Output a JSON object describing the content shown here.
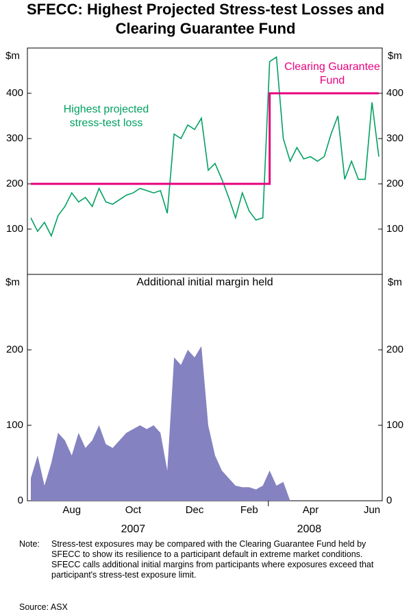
{
  "title": "SFECC: Highest Projected Stress-test Losses and Clearing Guarantee Fund",
  "chart_data": [
    {
      "type": "line",
      "y_label": "$m",
      "ylim": [
        0,
        500
      ],
      "yticks": [
        100,
        200,
        300,
        400
      ],
      "series": [
        {
          "name": "Highest projected stress-test loss",
          "color": "#00a060",
          "values": [
            125,
            95,
            115,
            85,
            130,
            150,
            180,
            160,
            170,
            150,
            190,
            160,
            155,
            165,
            175,
            180,
            190,
            185,
            180,
            185,
            135,
            310,
            300,
            330,
            320,
            345,
            230,
            245,
            210,
            170,
            125,
            180,
            140,
            120,
            125,
            470,
            480,
            300,
            250,
            280,
            255,
            260,
            250,
            260,
            310,
            350,
            210,
            250,
            210,
            210,
            380,
            260
          ]
        },
        {
          "name": "Clearing Guarantee Fund",
          "color": "#e6007e",
          "step": true,
          "values": [
            200,
            200,
            200,
            200,
            200,
            200,
            200,
            200,
            200,
            200,
            200,
            200,
            200,
            200,
            200,
            200,
            200,
            200,
            200,
            200,
            200,
            200,
            200,
            200,
            200,
            200,
            200,
            200,
            200,
            200,
            200,
            200,
            200,
            200,
            200,
            400,
            400,
            400,
            400,
            400,
            400,
            400,
            400,
            400,
            400,
            400,
            400,
            400,
            400,
            400,
            400,
            400
          ]
        }
      ]
    },
    {
      "type": "area",
      "title": "Additional initial margin held",
      "y_label": "$m",
      "ylim": [
        0,
        300
      ],
      "yticks": [
        0,
        100,
        200
      ],
      "categories": [
        null,
        null,
        null,
        null,
        null,
        null,
        "Aug",
        null,
        null,
        null,
        null,
        null,
        null,
        null,
        null,
        "Oct",
        null,
        null,
        null,
        null,
        null,
        null,
        null,
        null,
        "Dec",
        null,
        null,
        null,
        null,
        null,
        null,
        null,
        "Feb",
        null,
        null,
        null,
        null,
        null,
        null,
        null,
        null,
        "Apr",
        null,
        null,
        null,
        null,
        null,
        null,
        null,
        null,
        "Jun",
        null
      ],
      "years": [
        "2007",
        "2008"
      ],
      "series": [
        {
          "name": "Additional initial margin held",
          "color": "#8482c0",
          "values": [
            30,
            60,
            20,
            50,
            90,
            80,
            60,
            90,
            70,
            80,
            100,
            75,
            70,
            80,
            90,
            95,
            100,
            95,
            100,
            90,
            40,
            190,
            180,
            200,
            190,
            205,
            100,
            60,
            40,
            30,
            20,
            18,
            18,
            15,
            20,
            40,
            20,
            25,
            0,
            0,
            0,
            0,
            0,
            0,
            0,
            0,
            0,
            0,
            0,
            0,
            0,
            0
          ]
        }
      ]
    }
  ],
  "note_label": "Note:",
  "note": "Stress-test exposures may be compared with the Clearing Guarantee Fund held by SFECC to show its resilience to a participant default in extreme market conditions. SFECC calls additional initial margins from participants where exposures exceed that participant's stress-test exposure limit.",
  "source": "Source: ASX"
}
